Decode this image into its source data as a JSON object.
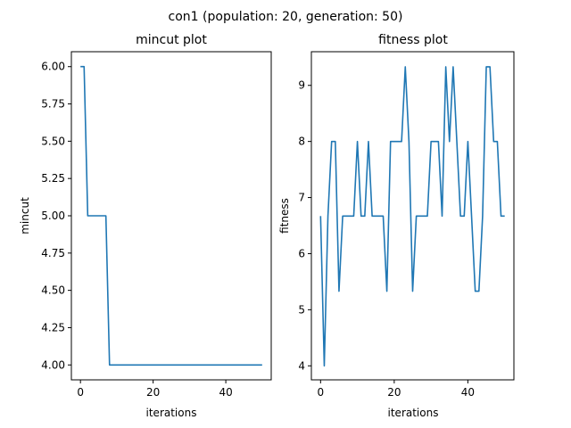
{
  "figure": {
    "suptitle": "con1 (population: 20, generation: 50)"
  },
  "chart_data": [
    {
      "type": "line",
      "title": "mincut plot",
      "xlabel": "iterations",
      "ylabel": "mincut",
      "xlim": [
        -2.5,
        52.5
      ],
      "ylim": [
        3.9,
        6.1
      ],
      "xticks": [
        0,
        20,
        40
      ],
      "yticks": [
        4.0,
        4.25,
        4.5,
        4.75,
        5.0,
        5.25,
        5.5,
        5.75,
        6.0
      ],
      "ytick_labels": [
        "4.00",
        "4.25",
        "4.50",
        "4.75",
        "5.00",
        "5.25",
        "5.50",
        "5.75",
        "6.00"
      ],
      "color": "#1f77b4",
      "x": [
        0,
        1,
        2,
        3,
        4,
        5,
        6,
        7,
        8,
        9,
        10,
        11,
        12,
        13,
        14,
        15,
        16,
        17,
        18,
        19,
        20,
        21,
        22,
        23,
        24,
        25,
        26,
        27,
        28,
        29,
        30,
        31,
        32,
        33,
        34,
        35,
        36,
        37,
        38,
        39,
        40,
        41,
        42,
        43,
        44,
        45,
        46,
        47,
        48,
        49,
        50
      ],
      "y": [
        6,
        6,
        5,
        5,
        5,
        5,
        5,
        5,
        4,
        4,
        4,
        4,
        4,
        4,
        4,
        4,
        4,
        4,
        4,
        4,
        4,
        4,
        4,
        4,
        4,
        4,
        4,
        4,
        4,
        4,
        4,
        4,
        4,
        4,
        4,
        4,
        4,
        4,
        4,
        4,
        4,
        4,
        4,
        4,
        4,
        4,
        4,
        4,
        4,
        4,
        4
      ]
    },
    {
      "type": "line",
      "title": "fitness plot",
      "xlabel": "iterations",
      "ylabel": "fitness",
      "xlim": [
        -2.5,
        52.5
      ],
      "ylim": [
        3.75,
        9.6
      ],
      "xticks": [
        0,
        20,
        40
      ],
      "yticks": [
        4,
        5,
        6,
        7,
        8,
        9
      ],
      "ytick_labels": [
        "4",
        "5",
        "6",
        "7",
        "8",
        "9"
      ],
      "color": "#1f77b4",
      "x": [
        0,
        1,
        2,
        3,
        4,
        5,
        6,
        7,
        8,
        9,
        10,
        11,
        12,
        13,
        14,
        15,
        16,
        17,
        18,
        19,
        20,
        21,
        22,
        23,
        24,
        25,
        26,
        27,
        28,
        29,
        30,
        31,
        32,
        33,
        34,
        35,
        36,
        37,
        38,
        39,
        40,
        41,
        42,
        43,
        44,
        45,
        46,
        47,
        48,
        49,
        50
      ],
      "y": [
        6.67,
        4,
        6.67,
        8,
        8,
        5.33,
        6.67,
        6.67,
        6.67,
        6.67,
        8,
        6.67,
        6.67,
        8,
        6.67,
        6.67,
        6.67,
        6.67,
        5.33,
        8,
        8,
        8,
        8,
        9.33,
        8,
        5.33,
        6.67,
        6.67,
        6.67,
        6.67,
        8,
        8,
        8,
        6.67,
        9.33,
        8,
        9.33,
        8,
        6.67,
        6.67,
        8,
        6.67,
        5.33,
        5.33,
        6.67,
        9.33,
        9.33,
        8,
        8,
        6.67,
        6.67
      ]
    }
  ]
}
